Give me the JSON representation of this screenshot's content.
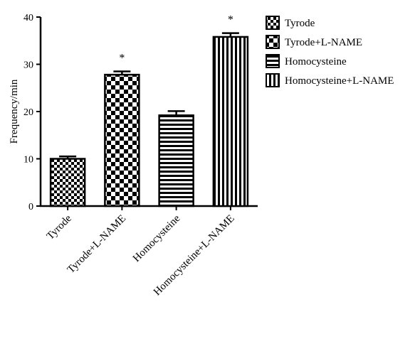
{
  "chart_data": {
    "type": "bar",
    "title": "",
    "xlabel": "",
    "ylabel": "Frequency/min",
    "ylim": [
      0,
      40
    ],
    "yticks": [
      0,
      10,
      20,
      30,
      40
    ],
    "grid": false,
    "legend_position": "right",
    "categories": [
      "Tyrode",
      "Tyrode+L-NAME",
      "Homocysteine",
      "Homocysteine+L-NAME"
    ],
    "values": [
      10,
      27.8,
      19.2,
      35.8
    ],
    "errors": [
      0.5,
      0.7,
      0.9,
      0.8
    ],
    "annotations": [
      "",
      "*",
      "",
      "*"
    ],
    "patterns": [
      "small-checker",
      "large-checker",
      "horizontal-stripes",
      "vertical-stripes"
    ],
    "legend": [
      "Tyrode",
      "Tyrode+L-NAME",
      "Homocysteine",
      "Homocysteine+L-NAME"
    ],
    "colors": {
      "ink": "#000000",
      "background": "#ffffff"
    }
  }
}
